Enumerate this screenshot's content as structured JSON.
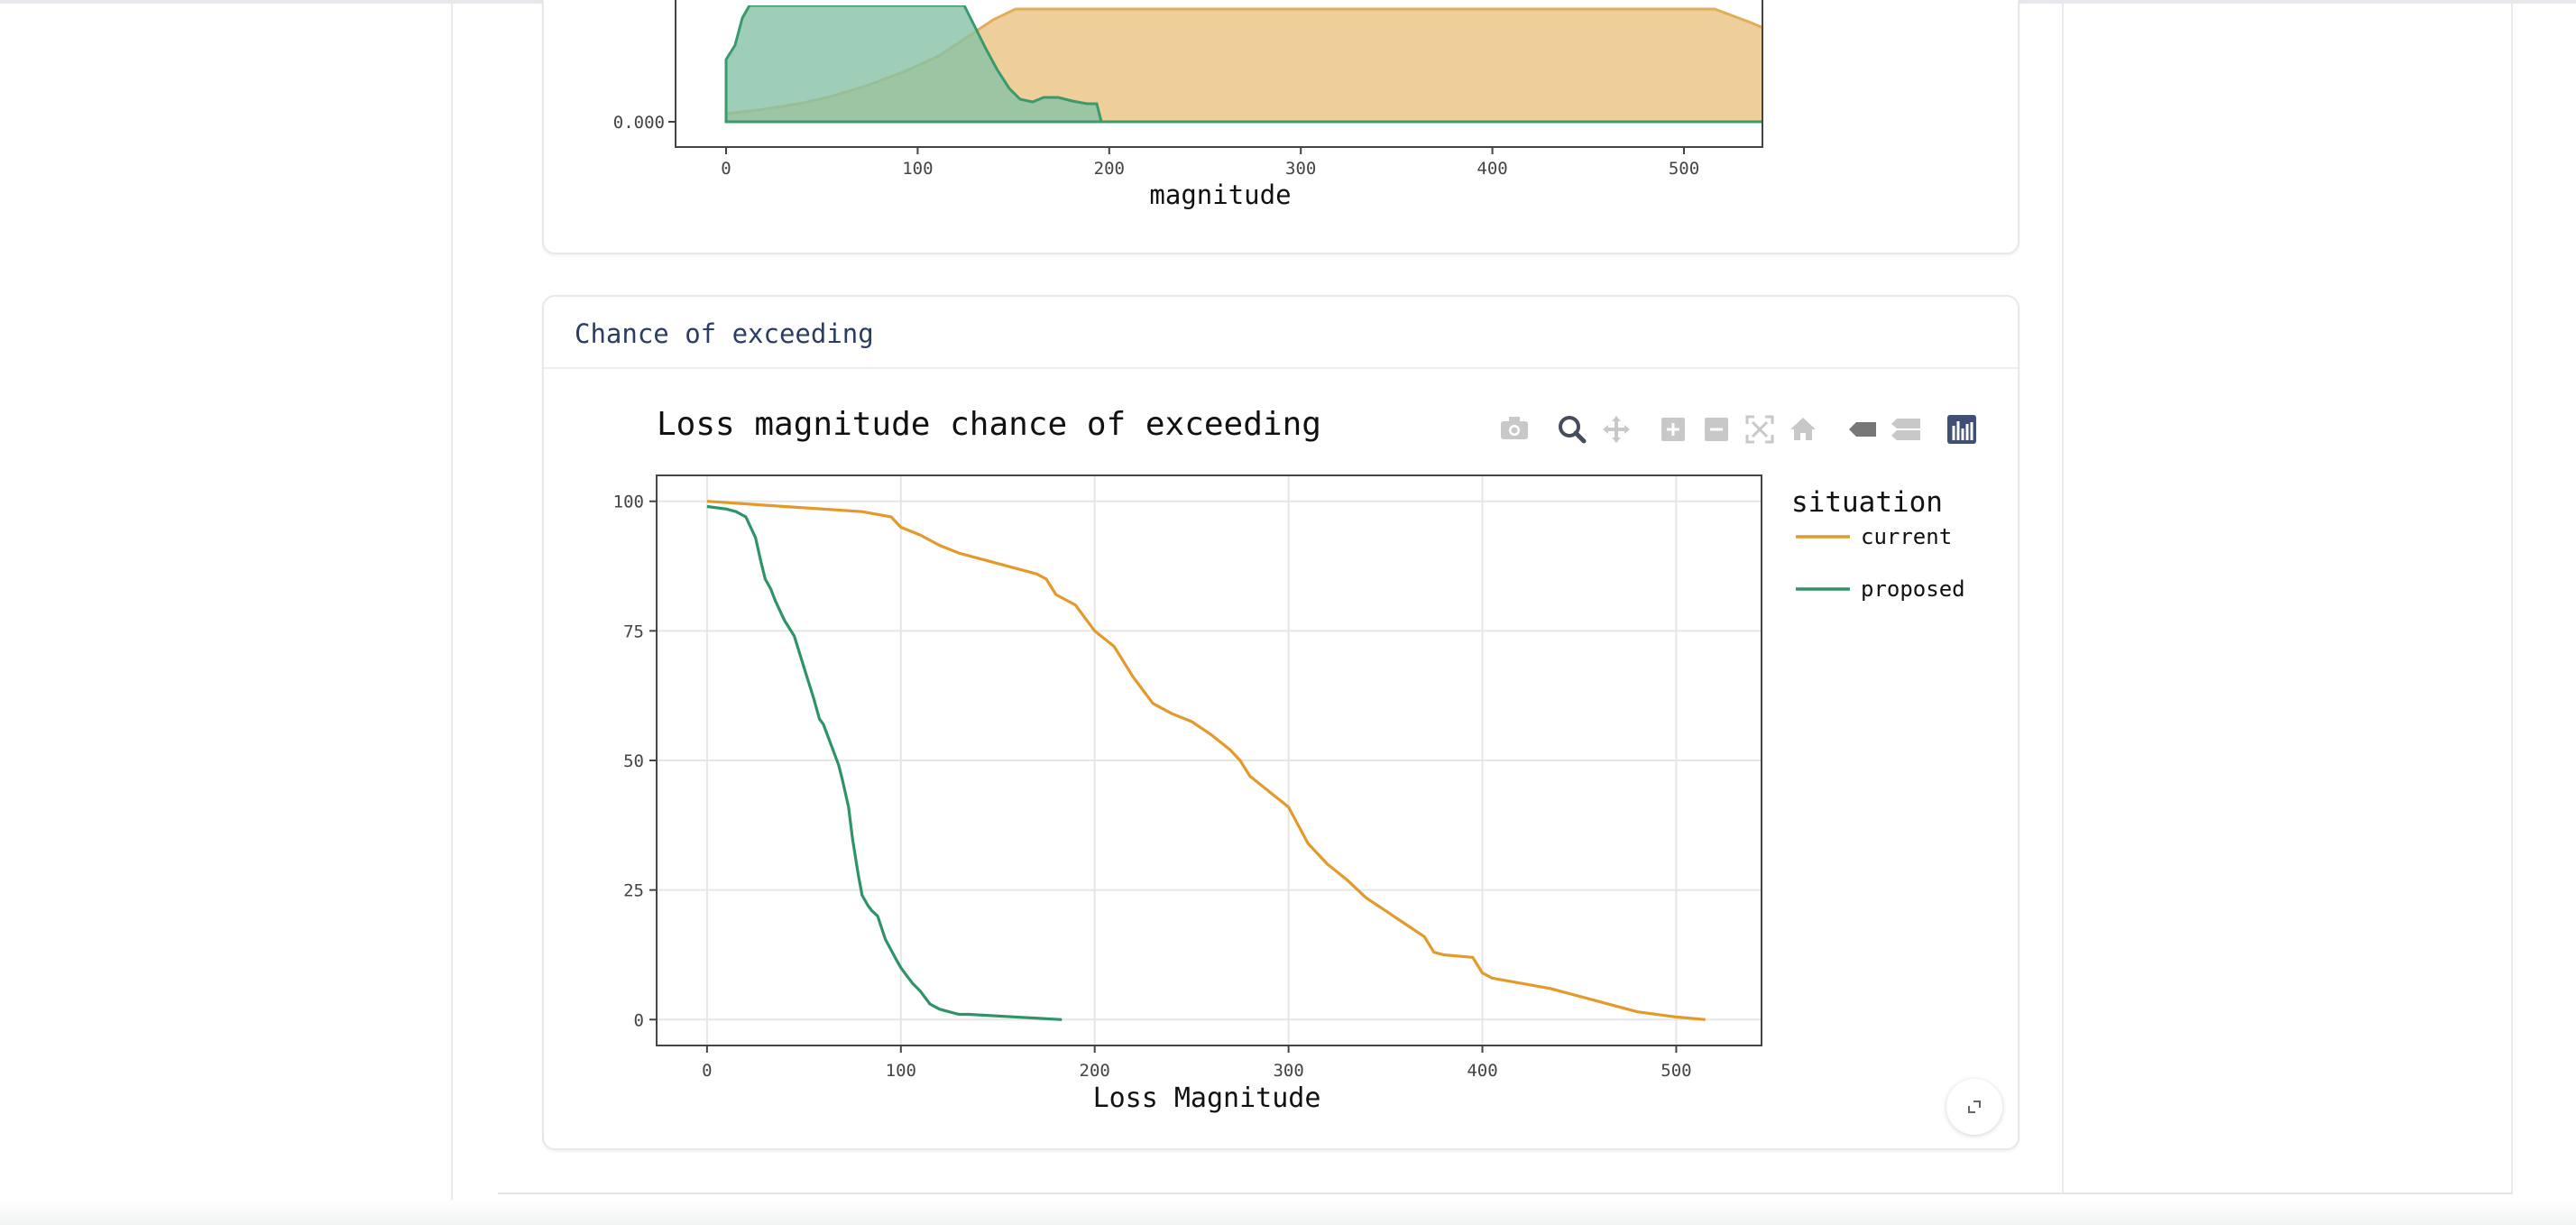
{
  "top_chart": {
    "x_axis_label": "magnitude",
    "x_ticks": [
      "0",
      "100",
      "200",
      "300",
      "400",
      "500"
    ],
    "y_tick_visible": "0.000",
    "colors": {
      "current_fill": "#e9c17c",
      "proposed_fill": "#86c2a5",
      "current_line": "#e5b05e",
      "proposed_line": "#3a9a6e"
    }
  },
  "exceed_card": {
    "header": "Chance of exceeding"
  },
  "toolbar": {
    "icons": [
      "camera-icon",
      "zoom-icon",
      "pan-icon",
      "zoom-in-icon",
      "zoom-out-icon",
      "autoscale-icon",
      "reset-axes-icon",
      "hover-closest-icon",
      "hover-compare-icon",
      "plotly-logo-icon"
    ]
  },
  "chart_data": {
    "type": "line",
    "title": "Loss magnitude chance of exceeding",
    "xlabel": "Loss Magnitude",
    "ylabel": "",
    "xlim": [
      -26,
      544
    ],
    "ylim": [
      -5,
      105
    ],
    "x_ticks": [
      0,
      100,
      200,
      300,
      400,
      500
    ],
    "y_ticks": [
      0,
      25,
      50,
      75,
      100
    ],
    "grid": true,
    "legend_title": "situation",
    "legend_position": "right",
    "series": [
      {
        "name": "current",
        "color": "#e39a2b",
        "x": [
          0,
          40,
          80,
          95,
          100,
          110,
          120,
          130,
          150,
          170,
          175,
          180,
          190,
          200,
          210,
          215,
          220,
          230,
          240,
          250,
          260,
          270,
          275,
          280,
          290,
          300,
          310,
          320,
          330,
          340,
          350,
          360,
          370,
          375,
          380,
          395,
          400,
          405,
          420,
          435,
          450,
          460,
          470,
          480,
          500,
          515
        ],
        "y": [
          100,
          99,
          98,
          97,
          95,
          93.5,
          91.5,
          90,
          88,
          86,
          85,
          82,
          80,
          75,
          72,
          69,
          66,
          61,
          59,
          57.5,
          55,
          52,
          50,
          47,
          44,
          41,
          34,
          30,
          27,
          23.5,
          21,
          18.5,
          16,
          13,
          12.5,
          12,
          9,
          8,
          7,
          6,
          4.5,
          3.5,
          2.5,
          1.5,
          0.5,
          0
        ]
      },
      {
        "name": "proposed",
        "color": "#2e9468",
        "x": [
          0,
          10,
          15,
          20,
          25,
          28,
          30,
          33,
          35,
          40,
          45,
          50,
          55,
          58,
          60,
          63,
          65,
          68,
          70,
          73,
          75,
          78,
          80,
          83,
          85,
          88,
          92,
          97,
          100,
          103,
          106,
          110,
          115,
          120,
          125,
          130,
          135,
          183
        ],
        "y": [
          99,
          98.5,
          98,
          97,
          93,
          88,
          85,
          83,
          81,
          77,
          74,
          68,
          62,
          58,
          57,
          54,
          52,
          49,
          46,
          41,
          35,
          28,
          24,
          22,
          21,
          20,
          15.5,
          12,
          10,
          8.5,
          7,
          5.5,
          3,
          2,
          1.5,
          1,
          1,
          0
        ]
      }
    ]
  }
}
